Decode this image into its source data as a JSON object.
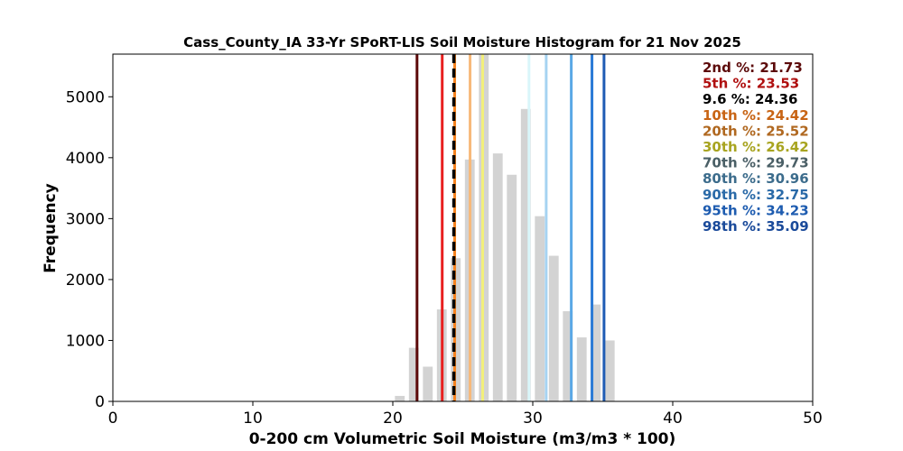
{
  "chart_data": {
    "type": "bar",
    "title": "Cass_County_IA 33-Yr SPoRT-LIS Soil Moisture Histogram for 21 Nov 2025",
    "xlabel": "0-200 cm Volumetric Soil Moisture (m3/m3 * 100)",
    "ylabel": "Frequency",
    "xlim": [
      0,
      50
    ],
    "ylim": [
      0,
      5700
    ],
    "xticks": [
      0,
      10,
      20,
      30,
      40,
      50
    ],
    "yticks": [
      0,
      1000,
      2000,
      3000,
      4000,
      5000
    ],
    "bar_color": "#d3d3d3",
    "bar_width": 0.7,
    "bars": [
      {
        "x": 20.5,
        "value": 90
      },
      {
        "x": 21.5,
        "value": 880
      },
      {
        "x": 22.5,
        "value": 570
      },
      {
        "x": 23.5,
        "value": 1510
      },
      {
        "x": 24.5,
        "value": 2350
      },
      {
        "x": 25.5,
        "value": 3970
      },
      {
        "x": 26.5,
        "value": 5700
      },
      {
        "x": 27.5,
        "value": 4070
      },
      {
        "x": 28.5,
        "value": 3720
      },
      {
        "x": 29.5,
        "value": 4800
      },
      {
        "x": 30.5,
        "value": 3040
      },
      {
        "x": 31.5,
        "value": 2390
      },
      {
        "x": 32.5,
        "value": 1480
      },
      {
        "x": 33.5,
        "value": 1050
      },
      {
        "x": 34.5,
        "value": 1590
      },
      {
        "x": 35.5,
        "value": 1000
      }
    ],
    "percentile_lines": [
      {
        "label": "2nd %: 21.73",
        "x": 21.73,
        "color": "#5c0a0a",
        "text_color": "#5c0a0a"
      },
      {
        "label": "5th %: 23.53",
        "x": 23.53,
        "color": "#e8201f",
        "text_color": "#b01010"
      },
      {
        "label": "10th %: 24.42",
        "x": 24.42,
        "color": "#f5821f",
        "text_color": "#c86414"
      },
      {
        "label": "20th %: 25.52",
        "x": 25.52,
        "color": "#f7b97a",
        "text_color": "#b06820"
      },
      {
        "label": "30th %: 26.42",
        "x": 26.42,
        "color": "#f2ef7a",
        "text_color": "#a8a420"
      },
      {
        "label": "70th %: 29.73",
        "x": 29.73,
        "color": "#d9f6fa",
        "text_color": "#4a5f66"
      },
      {
        "label": "80th %: 30.96",
        "x": 30.96,
        "color": "#a6d3f2",
        "text_color": "#3c6c8c"
      },
      {
        "label": "90th %: 32.75",
        "x": 32.75,
        "color": "#5aa8e6",
        "text_color": "#2a6aa8"
      },
      {
        "label": "95th %: 34.23",
        "x": 34.23,
        "color": "#2a7ad6",
        "text_color": "#1e5cb0"
      },
      {
        "label": "98th %: 35.09",
        "x": 35.09,
        "color": "#1f5cb4",
        "text_color": "#1a4a9a"
      }
    ],
    "current_value": {
      "label": "9.6 %: 24.36",
      "x": 24.36,
      "color": "#000000",
      "style": "dashed"
    },
    "legend_order": [
      "2nd %: 21.73",
      "5th %: 23.53",
      "9.6 %: 24.36",
      "10th %: 24.42",
      "20th %: 25.52",
      "30th %: 26.42",
      "70th %: 29.73",
      "80th %: 30.96",
      "90th %: 32.75",
      "95th %: 34.23",
      "98th %: 35.09"
    ],
    "legend_placement": "top-right",
    "grid": false
  }
}
